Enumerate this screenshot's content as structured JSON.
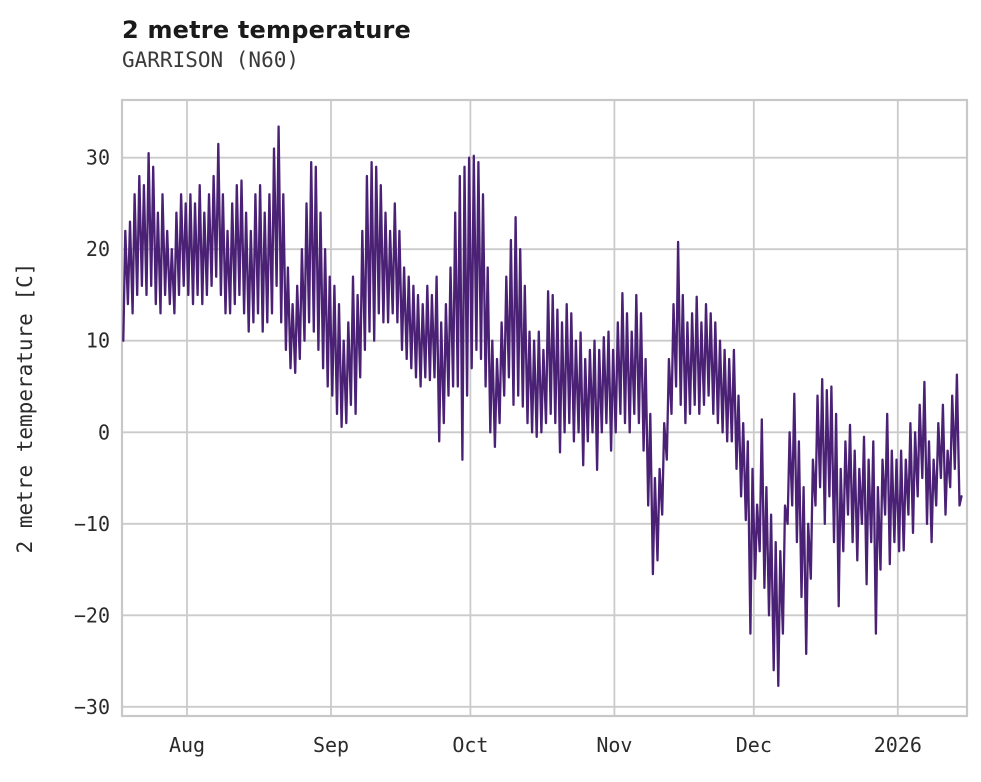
{
  "chart_data": {
    "type": "line",
    "title": "2 metre temperature",
    "subtitle": "GARRISON (N60)",
    "ylabel": "2 metre temperature [C]",
    "xlabel": "",
    "legend": null,
    "grid": true,
    "line_color": "#4a2175",
    "grid_color": "#cbcbcb",
    "frame_color": "#c8c8c8",
    "ylim": [
      -31,
      36.3
    ],
    "xlim_days": [
      0,
      181.9
    ],
    "x_unit": "days since series start (approx Jul 18)",
    "ytick_values": [
      30,
      20,
      10,
      0,
      -10,
      -20,
      -30
    ],
    "ytick_labels": [
      "30",
      "20",
      "10",
      "0",
      "−10",
      "−20",
      "−30"
    ],
    "xticks": [
      {
        "label": "Aug",
        "day": 14
      },
      {
        "label": "Sep",
        "day": 45
      },
      {
        "label": "Oct",
        "day": 75
      },
      {
        "label": "Nov",
        "day": 106
      },
      {
        "label": "Dec",
        "day": 136
      },
      {
        "label": "2026",
        "day": 167
      }
    ],
    "series_name": "2 metre temperature [C]",
    "sampling": "estimated daily minima and maxima read from plot",
    "daily_min": [
      10,
      14,
      13,
      15,
      16,
      15,
      16,
      14,
      13,
      15,
      14,
      13,
      15,
      16,
      15,
      14,
      15,
      14,
      15,
      16,
      17,
      15,
      13,
      13,
      14,
      15,
      13,
      11,
      12,
      13,
      11,
      12,
      13,
      16,
      12,
      9,
      7,
      6.5,
      8,
      10,
      12,
      11,
      9,
      7,
      5,
      4,
      2,
      0.6,
      1,
      3,
      2,
      6,
      9,
      11,
      10,
      13,
      12,
      12,
      13,
      12,
      9,
      8,
      7,
      6,
      5,
      6,
      5.7,
      6,
      -1,
      1,
      4,
      5,
      5,
      -3,
      4,
      7,
      9,
      8,
      5,
      0,
      -1.6,
      1,
      4,
      6,
      3,
      4,
      2.8,
      1,
      0,
      -0.5,
      0,
      1,
      2,
      1,
      -2.2,
      0,
      1,
      -1,
      0,
      -3.6,
      -1,
      0,
      -4.1,
      0,
      1,
      -2,
      0,
      2,
      1,
      0,
      2,
      1,
      -2,
      -8,
      -15.5,
      -14,
      -9,
      -3,
      2,
      5,
      3,
      1,
      2,
      3,
      2,
      3,
      4,
      2,
      1,
      0,
      -1,
      -1,
      -4,
      -7,
      -9.6,
      -22,
      -16,
      -13,
      -17,
      -20,
      -26,
      -27.7,
      -22,
      -10,
      -8,
      -12,
      -18,
      -24.2,
      -16,
      -8,
      -6,
      -10,
      -7,
      -12,
      -19,
      -13,
      -9,
      -12,
      -14,
      -10,
      -16.6,
      -12,
      -22,
      -15,
      -9,
      -14.4,
      -12,
      -13,
      -12.9,
      -9,
      -11,
      -7,
      -5,
      -10,
      -12,
      -8,
      -5,
      -9,
      -6,
      -4,
      -8
    ],
    "daily_max": [
      22,
      23,
      26,
      28,
      27,
      30.5,
      29,
      24,
      26,
      22,
      20,
      24,
      26,
      25,
      26,
      25,
      27,
      24,
      26,
      28,
      31.5,
      26,
      22,
      25,
      27,
      27.5,
      24,
      22,
      26,
      27,
      24,
      26,
      31,
      33.4,
      26,
      18,
      14,
      16,
      20,
      25,
      29.5,
      29,
      24,
      20,
      17,
      16,
      14,
      10,
      12,
      17,
      15,
      22,
      28,
      29.5,
      29,
      27,
      24,
      22,
      25,
      22,
      18,
      17,
      16,
      15,
      14,
      16,
      15,
      17,
      12,
      14,
      18,
      24,
      28,
      29,
      30,
      30.2,
      29.5,
      26,
      18,
      10,
      8,
      12,
      17,
      21,
      23.5,
      20,
      16,
      11,
      10,
      11,
      9,
      15.4,
      15,
      13.4,
      12,
      14,
      13,
      10,
      10.9,
      8,
      9,
      10,
      9,
      10.4,
      11,
      9,
      12,
      15.2,
      13,
      11,
      15,
      13,
      8,
      2,
      -5,
      -4,
      1,
      8,
      14,
      20.8,
      15,
      12,
      13,
      14.8,
      12,
      14,
      13,
      12,
      10,
      9,
      8,
      9,
      4,
      1,
      -1,
      -4,
      -7.9,
      1.4,
      -6,
      -9,
      -12,
      -13,
      -8,
      0,
      4.2,
      -1,
      -6,
      -10,
      -3,
      4,
      5.8,
      4.6,
      5,
      2,
      -4,
      -1,
      0.8,
      -2,
      -4,
      -0.5,
      -3,
      -1,
      -6,
      -3,
      2,
      -2,
      -3,
      -2,
      -3,
      1,
      0,
      3,
      5.5,
      -1,
      -3,
      1,
      3,
      -2,
      4,
      6.3,
      -7
    ]
  }
}
